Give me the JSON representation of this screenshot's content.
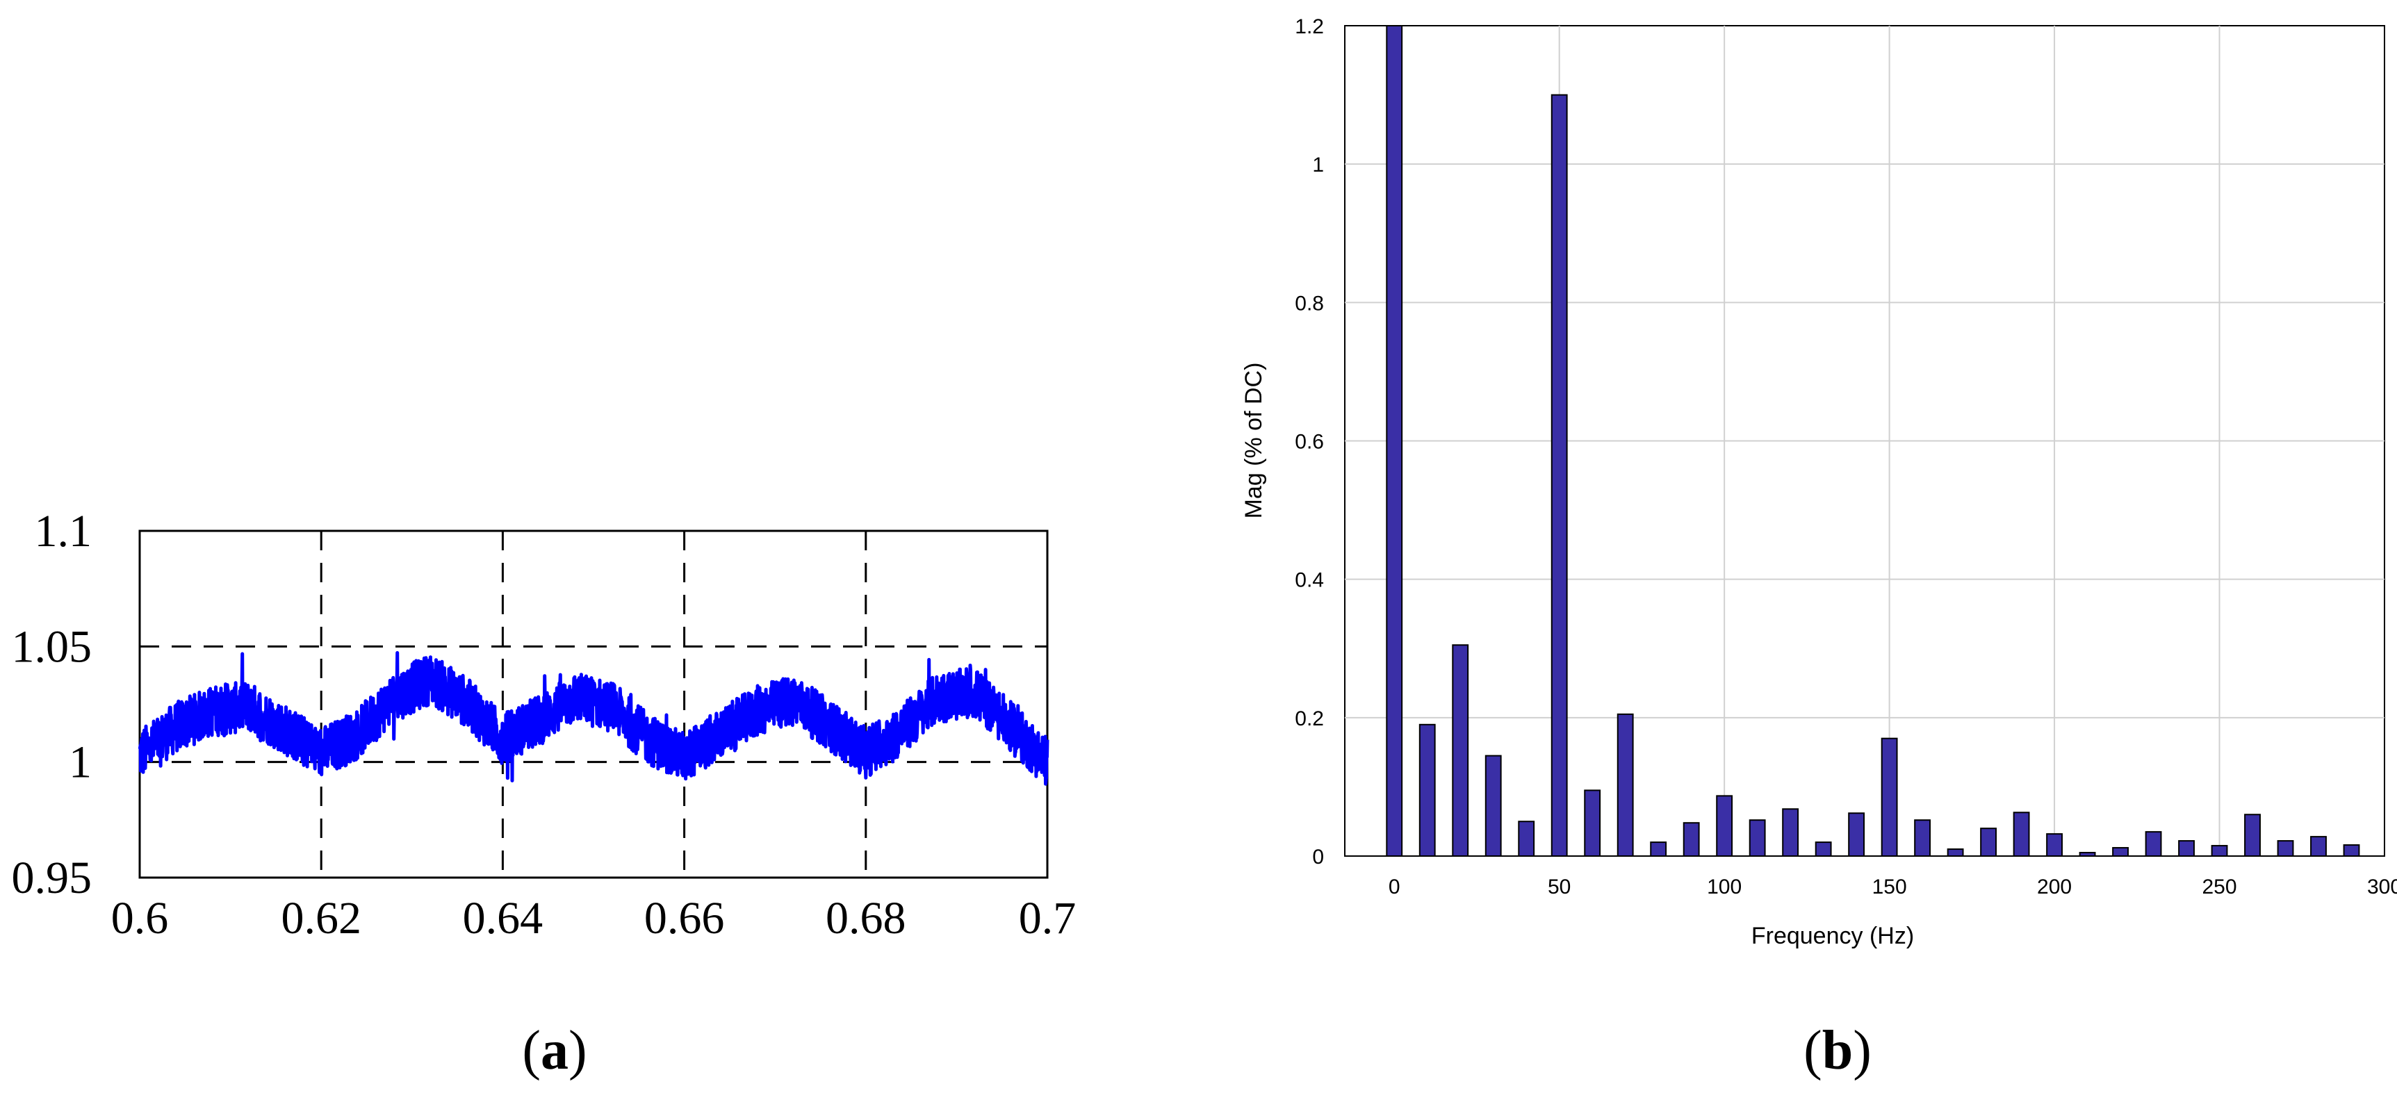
{
  "panels": {
    "a": {
      "label_open": "(",
      "label_letter": "a",
      "label_close": ")"
    },
    "b": {
      "label_open": "(",
      "label_letter": "b",
      "label_close": ")"
    }
  },
  "colors": {
    "signal": "#0000ff",
    "bar_fill": "#3a2fa6",
    "bar_edge": "#000000",
    "grid_b": "#d0d0d0"
  },
  "chart_data": [
    {
      "type": "line",
      "title": "",
      "xlabel": "",
      "ylabel": "",
      "xlim": [
        0.6,
        0.7
      ],
      "ylim": [
        0.95,
        1.1
      ],
      "x_ticks": [
        "0.6",
        "0.62",
        "0.64",
        "0.66",
        "0.68",
        "0.7"
      ],
      "y_ticks": [
        "0.95",
        "1",
        "1.05",
        "1.1"
      ],
      "grid": "dashed",
      "reference_lines": [
        1.0,
        1.05
      ],
      "series": [
        {
          "x": [
            0.6,
            0.604,
            0.608,
            0.612,
            0.616,
            0.62,
            0.624,
            0.628,
            0.632,
            0.636,
            0.64,
            0.644,
            0.648,
            0.652,
            0.656,
            0.66,
            0.664,
            0.668,
            0.672,
            0.676,
            0.68,
            0.684,
            0.688,
            0.692,
            0.696,
            0.7
          ],
          "y": [
            1.003,
            1.015,
            1.022,
            1.024,
            1.014,
            1.004,
            1.012,
            1.028,
            1.036,
            1.026,
            1.01,
            1.018,
            1.028,
            1.024,
            1.01,
            1.002,
            1.012,
            1.022,
            1.027,
            1.016,
            1.004,
            1.014,
            1.028,
            1.03,
            1.015,
            1.0
          ]
        }
      ]
    },
    {
      "type": "bar",
      "title": "",
      "xlabel": "Frequency (Hz)",
      "ylabel": "Mag (% of DC)",
      "xlim": [
        -15,
        300
      ],
      "ylim": [
        0,
        1.2
      ],
      "x_ticks": [
        "0",
        "50",
        "100",
        "150",
        "200",
        "250",
        "300"
      ],
      "y_ticks": [
        "0",
        "0.2",
        "0.4",
        "0.6",
        "0.8",
        "1",
        "1.2"
      ],
      "grid": "on",
      "categories": [
        0,
        10,
        20,
        30,
        40,
        50,
        60,
        70,
        80,
        90,
        100,
        110,
        120,
        130,
        140,
        150,
        160,
        170,
        180,
        190,
        200,
        210,
        220,
        230,
        240,
        250,
        260,
        270,
        280,
        290
      ],
      "values": [
        1.2,
        0.19,
        0.305,
        0.145,
        0.05,
        1.1,
        0.095,
        0.205,
        0.02,
        0.048,
        0.087,
        0.052,
        0.068,
        0.02,
        0.062,
        0.17,
        0.052,
        0.01,
        0.04,
        0.063,
        0.032,
        0.005,
        0.012,
        0.035,
        0.022,
        0.015,
        0.06,
        0.022,
        0.028,
        0.016
      ]
    }
  ]
}
